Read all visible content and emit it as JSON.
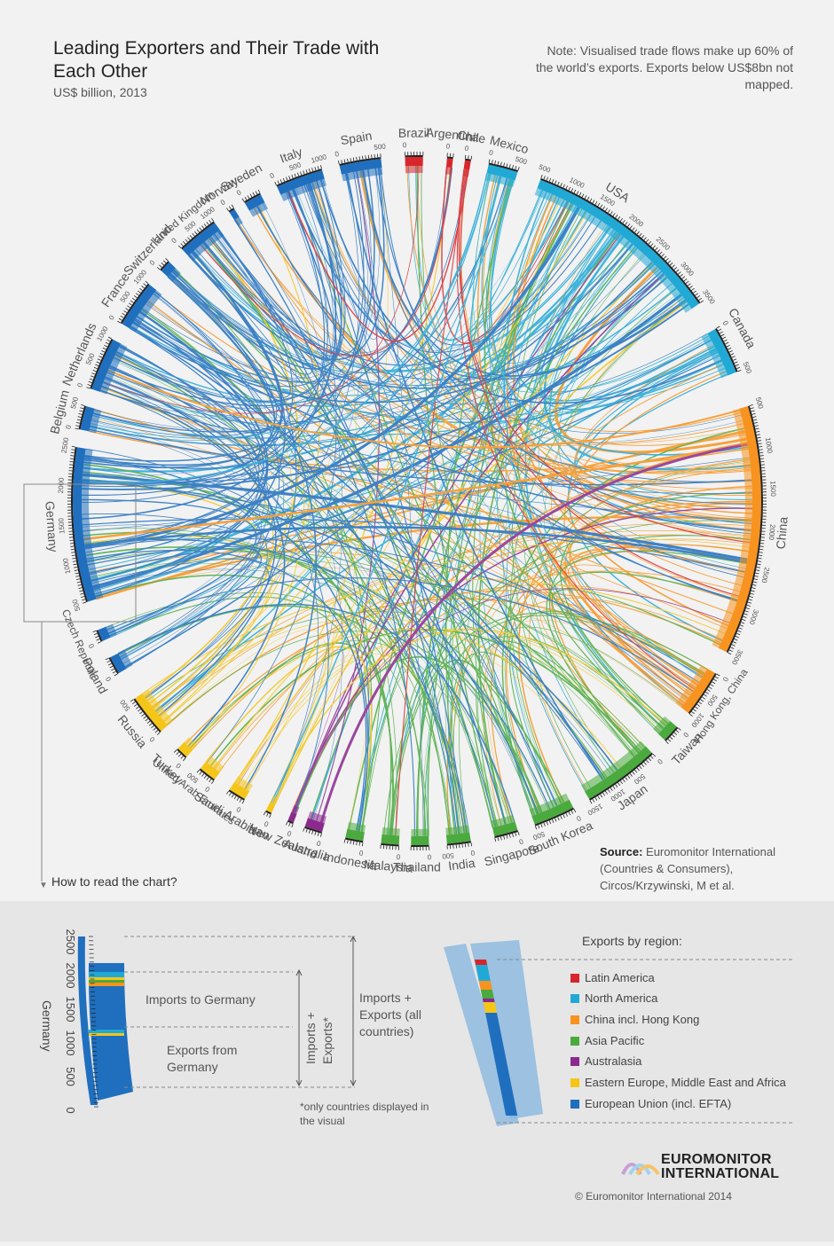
{
  "header": {
    "title": "Leading Exporters and Their Trade with Each Other",
    "subtitle": "US$ billion, 2013",
    "note": "Note: Visualised trade flows make up 60% of the world’s exports. Exports below US$8bn not mapped."
  },
  "source": {
    "label": "Source:",
    "text": "Euromonitor International (Countries & Consumers), Circos/Krzywinski, M et al."
  },
  "how_to_read": "How to read the chart?",
  "legend": {
    "title": "Exports by region:",
    "items": [
      {
        "label": "Latin America",
        "color": "#d7262b"
      },
      {
        "label": "North America",
        "color": "#21a9d6"
      },
      {
        "label": "China incl. Hong Kong",
        "color": "#f7931e"
      },
      {
        "label": "Asia Pacific",
        "color": "#4aaa3e"
      },
      {
        "label": "Australasia",
        "color": "#8a2a8f"
      },
      {
        "label": "Eastern Europe, Middle East and Africa",
        "color": "#f5c518"
      },
      {
        "label": "European Union (incl. EFTA)",
        "color": "#1f6fbe"
      }
    ]
  },
  "explainer": {
    "country": "Germany",
    "ticks": [
      "2500",
      "2000",
      "1500",
      "1000",
      "500",
      "0"
    ],
    "imports_label": "Imports to Germany",
    "exports_label": "Exports from Germany",
    "imports_exports_star": "Imports + Exports*",
    "imports_exports_all": "Imports + Exports (all countries)",
    "footnote": "*only countries displayed in the visual"
  },
  "brand": {
    "line1": "EUROMONITOR",
    "line2": "INTERNATIONAL",
    "copyright": "© Euromonitor International 2014"
  },
  "chart_data": {
    "type": "chord",
    "title": "Leading Exporters and Their Trade with Each Other",
    "unit": "US$ billion, 2013",
    "countries": [
      {
        "name": "USA",
        "region": "North America",
        "scale_max": 3500,
        "ticks": [
          "500",
          "1000",
          "1500",
          "2000",
          "2500",
          "3000",
          "3500"
        ]
      },
      {
        "name": "Canada",
        "region": "North America",
        "scale_max": 500,
        "ticks": [
          "0",
          "500"
        ]
      },
      {
        "name": "China",
        "region": "China incl. Hong Kong",
        "scale_max": 3500,
        "ticks": [
          "500",
          "1000",
          "1500",
          "2000",
          "2500",
          "3000",
          "3500"
        ]
      },
      {
        "name": "Hong Kong, China",
        "region": "China incl. Hong Kong",
        "scale_max": 1000,
        "ticks": [
          "0",
          "500",
          "1000"
        ]
      },
      {
        "name": "Taiwan",
        "region": "Asia Pacific",
        "scale_max": 500,
        "ticks": [
          "0"
        ]
      },
      {
        "name": "Japan",
        "region": "Asia Pacific",
        "scale_max": 1500,
        "ticks": [
          "0",
          "500",
          "1000",
          "1500"
        ]
      },
      {
        "name": "South Korea",
        "region": "Asia Pacific",
        "scale_max": 500,
        "ticks": [
          "0",
          "500"
        ]
      },
      {
        "name": "Singapore",
        "region": "Asia Pacific",
        "scale_max": 500,
        "ticks": [
          "0"
        ]
      },
      {
        "name": "India",
        "region": "Asia Pacific",
        "scale_max": 500,
        "ticks": [
          "0",
          "500"
        ]
      },
      {
        "name": "Thailand",
        "region": "Asia Pacific",
        "scale_max": 500,
        "ticks": [
          "0"
        ]
      },
      {
        "name": "Malaysia",
        "region": "Asia Pacific",
        "scale_max": 500,
        "ticks": [
          "0"
        ]
      },
      {
        "name": "Indonesia",
        "region": "Asia Pacific",
        "scale_max": 500,
        "ticks": [
          "0"
        ]
      },
      {
        "name": "Australia",
        "region": "Australasia",
        "scale_max": 500,
        "ticks": [
          "0"
        ]
      },
      {
        "name": "New Zealand",
        "region": "Australasia",
        "scale_max": 500,
        "ticks": [
          "0"
        ]
      },
      {
        "name": "Iran",
        "region": "Eastern Europe, Middle East and Africa",
        "scale_max": 500,
        "ticks": [
          "0"
        ]
      },
      {
        "name": "Saudi Arabia",
        "region": "Eastern Europe, Middle East and Africa",
        "scale_max": 500,
        "ticks": [
          "0"
        ]
      },
      {
        "name": "United Arab Emirates",
        "region": "Eastern Europe, Middle East and Africa",
        "scale_max": 500,
        "ticks": [
          "0",
          "500"
        ]
      },
      {
        "name": "Turkey",
        "region": "Eastern Europe, Middle East and Africa",
        "scale_max": 500,
        "ticks": [
          "0"
        ]
      },
      {
        "name": "Russia",
        "region": "Eastern Europe, Middle East and Africa",
        "scale_max": 500,
        "ticks": [
          "0",
          "500"
        ]
      },
      {
        "name": "Poland",
        "region": "European Union (incl. EFTA)",
        "scale_max": 500,
        "ticks": [
          "0"
        ]
      },
      {
        "name": "Czech Republic",
        "region": "European Union (incl. EFTA)",
        "scale_max": 500,
        "ticks": [
          "0"
        ]
      },
      {
        "name": "Germany",
        "region": "European Union (incl. EFTA)",
        "scale_max": 2500,
        "ticks": [
          "500",
          "1000",
          "1500",
          "2000",
          "2500"
        ]
      },
      {
        "name": "Belgium",
        "region": "European Union (incl. EFTA)",
        "scale_max": 500,
        "ticks": [
          "0",
          "500"
        ]
      },
      {
        "name": "Netherlands",
        "region": "European Union (incl. EFTA)",
        "scale_max": 1000,
        "ticks": [
          "0",
          "500",
          "1000"
        ]
      },
      {
        "name": "France",
        "region": "European Union (incl. EFTA)",
        "scale_max": 1000,
        "ticks": [
          "0",
          "500",
          "1000"
        ]
      },
      {
        "name": "Switzerland",
        "region": "European Union (incl. EFTA)",
        "scale_max": 500,
        "ticks": [
          "0"
        ]
      },
      {
        "name": "United Kingdom",
        "region": "European Union (incl. EFTA)",
        "scale_max": 1000,
        "ticks": [
          "0",
          "500",
          "1000"
        ]
      },
      {
        "name": "Norway",
        "region": "European Union (incl. EFTA)",
        "scale_max": 500,
        "ticks": [
          "0"
        ]
      },
      {
        "name": "Sweden",
        "region": "European Union (incl. EFTA)",
        "scale_max": 500,
        "ticks": [
          "0"
        ]
      },
      {
        "name": "Italy",
        "region": "European Union (incl. EFTA)",
        "scale_max": 1000,
        "ticks": [
          "0",
          "500",
          "1000"
        ]
      },
      {
        "name": "Spain",
        "region": "European Union (incl. EFTA)",
        "scale_max": 500,
        "ticks": [
          "0",
          "500"
        ]
      },
      {
        "name": "Brazil",
        "region": "Latin America",
        "scale_max": 500,
        "ticks": [
          "0"
        ]
      },
      {
        "name": "Argentina",
        "region": "Latin America",
        "scale_max": 500,
        "ticks": [
          "0"
        ]
      },
      {
        "name": "Chile",
        "region": "Latin America",
        "scale_max": 500,
        "ticks": [
          "0"
        ]
      },
      {
        "name": "Mexico",
        "region": "North America",
        "scale_max": 500,
        "ticks": [
          "0",
          "500"
        ]
      }
    ]
  }
}
